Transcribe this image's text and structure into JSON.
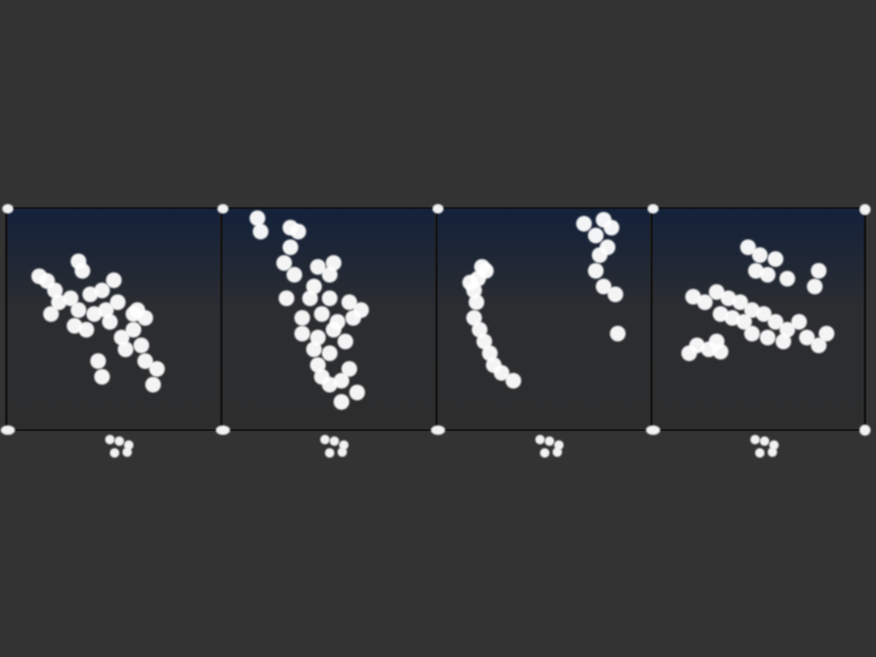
{
  "chart_data": [
    {
      "type": "scatter",
      "color": "#ffffff",
      "xlim": [
        0,
        272
      ],
      "ylim": [
        0,
        283
      ],
      "x": [
        42,
        52,
        62,
        92,
        97,
        137,
        122,
        107,
        82,
        67,
        57,
        92,
        112,
        142,
        167,
        132,
        102,
        87,
        147,
        162,
        172,
        152,
        117,
        122,
        177,
        192,
        187,
        162,
        177,
        127
      ],
      "values": [
        196,
        190,
        178,
        215,
        203,
        191,
        178,
        173,
        168,
        163,
        148,
        153,
        148,
        163,
        153,
        138,
        128,
        133,
        118,
        128,
        108,
        103,
        88,
        68,
        88,
        78,
        58,
        148,
        143,
        153
      ]
    },
    {
      "type": "scatter",
      "color": "#ffffff",
      "xlim": [
        0,
        272
      ],
      "ylim": [
        0,
        283
      ],
      "x": [
        46,
        50,
        88,
        98,
        88,
        80,
        93,
        123,
        143,
        138,
        118,
        83,
        113,
        138,
        163,
        178,
        128,
        103,
        148,
        168,
        103,
        123,
        143,
        158,
        118,
        138,
        123,
        163,
        153,
        173,
        153,
        138,
        128
      ],
      "values": [
        270,
        253,
        258,
        253,
        233,
        213,
        198,
        208,
        213,
        198,
        183,
        168,
        168,
        168,
        163,
        153,
        148,
        143,
        138,
        143,
        123,
        118,
        128,
        113,
        103,
        98,
        83,
        78,
        63,
        48,
        36,
        58,
        68
      ]
    },
    {
      "type": "scatter",
      "color": "#ffffff",
      "xlim": [
        0,
        272
      ],
      "ylim": [
        0,
        283
      ],
      "x": [
        58,
        53,
        48,
        51,
        48,
        55,
        61,
        68,
        73,
        83,
        98,
        63,
        43,
        188,
        213,
        223,
        203,
        218,
        208,
        203,
        213,
        228,
        231
      ],
      "values": [
        208,
        193,
        178,
        163,
        143,
        128,
        113,
        98,
        83,
        73,
        63,
        203,
        188,
        263,
        268,
        258,
        248,
        233,
        223,
        203,
        183,
        173,
        123
      ]
    },
    {
      "type": "scatter",
      "color": "#ffffff",
      "xlim": [
        0,
        272
      ],
      "ylim": [
        0,
        283
      ],
      "x": [
        123,
        138,
        158,
        133,
        148,
        173,
        213,
        208,
        53,
        68,
        83,
        98,
        113,
        128,
        143,
        158,
        118,
        103,
        88,
        173,
        188,
        198,
        223,
        213,
        148,
        128,
        168,
        58,
        73,
        88,
        48,
        83
      ],
      "values": [
        233,
        223,
        218,
        203,
        198,
        193,
        203,
        183,
        170,
        163,
        176,
        168,
        163,
        153,
        148,
        138,
        138,
        143,
        148,
        128,
        138,
        118,
        123,
        108,
        118,
        123,
        113,
        108,
        103,
        100,
        98,
        113
      ]
    }
  ]
}
